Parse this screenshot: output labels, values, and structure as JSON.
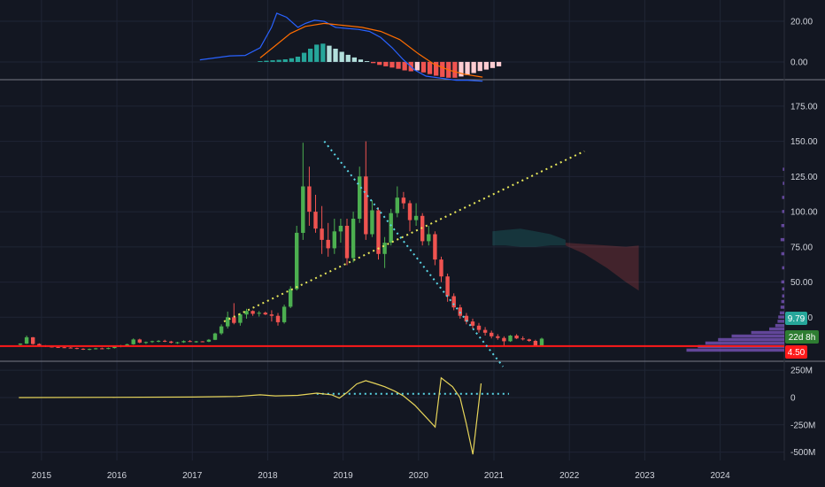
{
  "colors": {
    "background": "#131722",
    "grid": "#1f2535",
    "separator": "#787b86",
    "bull": "#26a69a",
    "bull_candle": "#4caf50",
    "bear_candle": "#ef5350",
    "support": "#ff1a1a",
    "rising_trend": "#e8e85a",
    "falling_trend": "#5ad6e6",
    "macd_line": "#2962ff",
    "signal_line": "#ff6d00",
    "hist_pos_strong": "#26a69a",
    "hist_pos_weak": "#b2dfdb",
    "hist_neg_strong": "#ef5350",
    "hist_neg_weak": "#ffcdd2",
    "obv_line": "#e6d45a",
    "obv_ref": "#5ad6e6",
    "volume_profile": "#7e57c2",
    "price_tag": "#26a69a",
    "countdown_tag": "#2e7d32",
    "support_tag": "#ff1a1a"
  },
  "chart_data": [
    {
      "type": "bar",
      "name": "macd",
      "yticks": [
        20.0,
        0.0
      ],
      "ytick_labels": [
        "20.00",
        "0.00"
      ],
      "ylim": [
        -7,
        27
      ],
      "start": 2014.72,
      "step": 0.0833,
      "macd_line": [
        {
          "x": 2017.1,
          "y": 1.0
        },
        {
          "x": 2017.3,
          "y": 2.0
        },
        {
          "x": 2017.5,
          "y": 3.0
        },
        {
          "x": 2017.7,
          "y": 3.2
        },
        {
          "x": 2017.9,
          "y": 7.0
        },
        {
          "x": 2018.05,
          "y": 17.0
        },
        {
          "x": 2018.12,
          "y": 24.0
        },
        {
          "x": 2018.25,
          "y": 22.0
        },
        {
          "x": 2018.4,
          "y": 17.0
        },
        {
          "x": 2018.5,
          "y": 19.0
        },
        {
          "x": 2018.62,
          "y": 20.5
        },
        {
          "x": 2018.75,
          "y": 20.0
        },
        {
          "x": 2018.9,
          "y": 17.0
        },
        {
          "x": 2019.05,
          "y": 16.5
        },
        {
          "x": 2019.2,
          "y": 16.0
        },
        {
          "x": 2019.35,
          "y": 15.0
        },
        {
          "x": 2019.5,
          "y": 12.0
        },
        {
          "x": 2019.65,
          "y": 7.0
        },
        {
          "x": 2019.8,
          "y": 1.0
        },
        {
          "x": 2019.95,
          "y": -4.0
        },
        {
          "x": 2020.1,
          "y": -7.0
        },
        {
          "x": 2020.3,
          "y": -8.0
        },
        {
          "x": 2020.5,
          "y": -9.0
        },
        {
          "x": 2020.65,
          "y": -9.0
        },
        {
          "x": 2020.85,
          "y": -9.5
        }
      ],
      "signal_line": [
        {
          "x": 2017.9,
          "y": 2.0
        },
        {
          "x": 2018.1,
          "y": 8.0
        },
        {
          "x": 2018.3,
          "y": 14.0
        },
        {
          "x": 2018.5,
          "y": 17.5
        },
        {
          "x": 2018.75,
          "y": 19.0
        },
        {
          "x": 2019.0,
          "y": 18.0
        },
        {
          "x": 2019.25,
          "y": 17.0
        },
        {
          "x": 2019.5,
          "y": 15.0
        },
        {
          "x": 2019.75,
          "y": 11.0
        },
        {
          "x": 2020.0,
          "y": 4.0
        },
        {
          "x": 2020.2,
          "y": -1.0
        },
        {
          "x": 2020.4,
          "y": -4.0
        },
        {
          "x": 2020.6,
          "y": -6.0
        },
        {
          "x": 2020.85,
          "y": -7.5
        }
      ],
      "histogram": [
        0.4,
        0.6,
        0.8,
        1.0,
        1.3,
        1.8,
        2.6,
        4.5,
        6.5,
        8.5,
        9.0,
        8.0,
        6.5,
        5.0,
        3.5,
        2.2,
        1.2,
        0.4,
        -0.6,
        -1.5,
        -2.2,
        -2.8,
        -3.4,
        -4.2,
        -4.6,
        -4.2,
        -5.2,
        -6.0,
        -6.8,
        -7.4,
        -7.8,
        -7.8,
        -7.2,
        -6.5,
        -5.5,
        -4.5,
        -3.8,
        -3.0,
        -2.2
      ],
      "histogram_start": 2017.9
    },
    {
      "type": "candlestick",
      "name": "price",
      "yticks": [
        25,
        50,
        75,
        100,
        125,
        150,
        175
      ],
      "ytick_labels": [
        "25.00",
        "50.00",
        "75.00",
        "100.00",
        "125.00",
        "150.00",
        "175.00"
      ],
      "ylim": [
        -5,
        190
      ],
      "x_ticks": [
        2015,
        2016,
        2017,
        2018,
        2019,
        2020,
        2021,
        2022,
        2023,
        2024
      ],
      "x_tick_labels": [
        "2015",
        "2016",
        "2017",
        "2018",
        "2019",
        "2020",
        "2021",
        "2022",
        "2023",
        "2024"
      ],
      "x_range": [
        2014.45,
        2024.85
      ],
      "candle_start": 2014.72,
      "candle_step": 0.0833,
      "candles": [
        [
          5.5,
          6.5,
          4.8,
          6.3
        ],
        [
          6.3,
          12.0,
          6.0,
          10.8
        ],
        [
          10.8,
          11.0,
          5.5,
          6.0
        ],
        [
          6.0,
          6.5,
          4.0,
          4.8
        ],
        [
          4.8,
          5.2,
          3.8,
          4.2
        ],
        [
          4.2,
          4.6,
          3.5,
          3.9
        ],
        [
          3.9,
          4.3,
          3.2,
          3.7
        ],
        [
          3.7,
          4.1,
          3.1,
          3.4
        ],
        [
          3.4,
          3.8,
          2.9,
          3.1
        ],
        [
          3.1,
          3.4,
          2.3,
          2.6
        ],
        [
          2.6,
          3.0,
          1.8,
          2.2
        ],
        [
          2.2,
          2.8,
          1.6,
          2.5
        ],
        [
          2.5,
          3.3,
          2.1,
          2.9
        ],
        [
          2.9,
          3.4,
          2.3,
          2.7
        ],
        [
          2.7,
          3.5,
          2.3,
          3.1
        ],
        [
          3.1,
          4.5,
          2.8,
          4.2
        ],
        [
          4.2,
          5.4,
          3.6,
          4.9
        ],
        [
          4.9,
          6.2,
          4.5,
          5.8
        ],
        [
          5.8,
          10.0,
          5.5,
          9.2
        ],
        [
          9.2,
          9.8,
          6.5,
          7.0
        ],
        [
          7.0,
          7.8,
          6.0,
          7.4
        ],
        [
          7.4,
          8.4,
          6.8,
          8.0
        ],
        [
          8.0,
          8.8,
          7.2,
          8.3
        ],
        [
          8.3,
          9.0,
          7.3,
          7.8
        ],
        [
          7.8,
          8.3,
          6.4,
          6.9
        ],
        [
          6.9,
          7.6,
          6.1,
          7.2
        ],
        [
          7.2,
          8.6,
          6.8,
          8.1
        ],
        [
          8.1,
          8.8,
          7.4,
          7.6
        ],
        [
          7.6,
          8.2,
          6.9,
          7.9
        ],
        [
          7.9,
          8.1,
          7.2,
          7.6
        ],
        [
          7.6,
          9.5,
          7.3,
          9.0
        ],
        [
          9.0,
          14.0,
          8.8,
          13.5
        ],
        [
          13.5,
          20.0,
          12.5,
          18.5
        ],
        [
          18.5,
          29.0,
          17.0,
          25.0
        ],
        [
          25.0,
          35.0,
          20.0,
          21.0
        ],
        [
          21.0,
          28.0,
          19.0,
          27.0
        ],
        [
          27.0,
          31.0,
          24.0,
          29.5
        ],
        [
          29.5,
          30.0,
          26.0,
          27.5
        ],
        [
          27.5,
          29.5,
          25.5,
          28.2
        ],
        [
          28.2,
          29.0,
          26.5,
          27.0
        ],
        [
          27.0,
          30.0,
          22.0,
          26.0
        ],
        [
          26.0,
          28.0,
          19.0,
          21.5
        ],
        [
          21.5,
          34.0,
          20.5,
          32.5
        ],
        [
          32.5,
          47.0,
          31.5,
          45.0
        ],
        [
          45.0,
          90.0,
          44.0,
          85.0
        ],
        [
          85.0,
          149.0,
          80.0,
          118.0
        ],
        [
          118.0,
          132.0,
          90.0,
          100.0
        ],
        [
          100.0,
          112.0,
          85.0,
          88.0
        ],
        [
          88.0,
          104.0,
          70.0,
          80.0
        ],
        [
          80.0,
          92.0,
          68.0,
          74.0
        ],
        [
          74.0,
          95.0,
          70.0,
          86.0
        ],
        [
          86.0,
          95.0,
          78.0,
          90.0
        ],
        [
          90.0,
          95.0,
          62.0,
          67.0
        ],
        [
          67.0,
          100.0,
          64.0,
          95.0
        ],
        [
          95.0,
          132.0,
          92.0,
          125.0
        ],
        [
          125.0,
          150.0,
          80.0,
          84.0
        ],
        [
          84.0,
          108.0,
          82.0,
          101.0
        ],
        [
          101.0,
          103.0,
          66.0,
          70.0
        ],
        [
          70.0,
          82.0,
          60.0,
          78.0
        ],
        [
          78.0,
          102.0,
          76.0,
          99.0
        ],
        [
          99.0,
          118.0,
          96.0,
          110.0
        ],
        [
          110.0,
          114.0,
          102.0,
          106.0
        ],
        [
          106.0,
          108.0,
          86.0,
          94.0
        ],
        [
          94.0,
          106.0,
          90.0,
          97.0
        ],
        [
          97.0,
          99.0,
          76.0,
          79.0
        ],
        [
          79.0,
          90.0,
          76.0,
          84.0
        ],
        [
          84.0,
          86.0,
          62.0,
          66.0
        ],
        [
          66.0,
          68.0,
          50.0,
          54.0
        ],
        [
          54.0,
          56.0,
          36.0,
          40.0
        ],
        [
          40.0,
          42.0,
          30.0,
          32.0
        ],
        [
          32.0,
          34.0,
          24.0,
          26.0
        ],
        [
          26.0,
          28.0,
          20.0,
          22.0
        ],
        [
          22.0,
          24.0,
          17.0,
          19.0
        ],
        [
          19.0,
          21.0,
          14.0,
          16.0
        ],
        [
          16.0,
          18.0,
          12.0,
          14.0
        ],
        [
          14.0,
          15.5,
          10.0,
          11.5
        ],
        [
          11.5,
          13.0,
          9.0,
          10.3
        ],
        [
          10.3,
          11.5,
          5.0,
          8.0
        ],
        [
          8.0,
          12.5,
          7.5,
          12.0
        ],
        [
          12.0,
          13.0,
          9.5,
          10.0
        ],
        [
          10.0,
          11.5,
          8.5,
          9.3
        ],
        [
          9.3,
          9.8,
          7.5,
          8.2
        ],
        [
          8.2,
          9.0,
          4.2,
          4.7
        ],
        [
          4.7,
          10.5,
          4.5,
          9.79
        ]
      ],
      "support_level": 4.5,
      "rising_trend_line": [
        {
          "x": 2017.42,
          "y": 22
        },
        {
          "x": 2022.2,
          "y": 143
        }
      ],
      "falling_trend_line": [
        {
          "x": 2018.75,
          "y": 150
        },
        {
          "x": 2021.12,
          "y": -10
        }
      ],
      "cloud_green": {
        "x": [
          2020.98,
          2021.15,
          2021.35,
          2021.55,
          2021.75,
          2021.95
        ],
        "top": [
          86,
          87,
          88,
          86,
          84,
          80
        ],
        "bottom": [
          76,
          76,
          75,
          75,
          76,
          76
        ]
      },
      "cloud_red": {
        "x": [
          2021.95,
          2022.2,
          2022.5,
          2022.75,
          2022.92
        ],
        "top": [
          78,
          77,
          76,
          75,
          76
        ],
        "bottom": [
          76,
          70,
          60,
          50,
          44
        ]
      },
      "volume_profile": [
        {
          "price": 1.5,
          "width": 130
        },
        {
          "price": 4.0,
          "width": 115
        },
        {
          "price": 6.5,
          "width": 105
        },
        {
          "price": 9.0,
          "width": 88
        },
        {
          "price": 11.5,
          "width": 70
        },
        {
          "price": 14.0,
          "width": 44
        },
        {
          "price": 16.5,
          "width": 20
        },
        {
          "price": 19.0,
          "width": 12
        },
        {
          "price": 22.0,
          "width": 9
        },
        {
          "price": 25.0,
          "width": 8
        },
        {
          "price": 28.0,
          "width": 6
        },
        {
          "price": 32.0,
          "width": 5
        },
        {
          "price": 36.0,
          "width": 4
        },
        {
          "price": 40.0,
          "width": 3
        },
        {
          "price": 45.0,
          "width": 3
        },
        {
          "price": 50.0,
          "width": 4
        },
        {
          "price": 60.0,
          "width": 3
        },
        {
          "price": 70.0,
          "width": 4
        },
        {
          "price": 80.0,
          "width": 5
        },
        {
          "price": 90.0,
          "width": 4
        },
        {
          "price": 100.0,
          "width": 3
        },
        {
          "price": 110.0,
          "width": 3
        },
        {
          "price": 120.0,
          "width": 2
        },
        {
          "price": 130.0,
          "width": 2
        }
      ],
      "last_price_label": "9.79",
      "countdown_label": "22d 8h",
      "support_label": "4.50"
    },
    {
      "type": "line",
      "name": "volume_oscillator",
      "yticks": [
        250000000,
        0,
        -250000000,
        -500000000
      ],
      "ytick_labels": [
        "250M",
        "0",
        "-250M",
        "-500M"
      ],
      "ylim": [
        -560000000,
        300000000
      ],
      "series": [
        {
          "type": "line",
          "points": [
            {
              "x": 2014.7,
              "y": 0
            },
            {
              "x": 2016.0,
              "y": 2000000
            },
            {
              "x": 2017.0,
              "y": 5000000
            },
            {
              "x": 2017.6,
              "y": 10000000
            },
            {
              "x": 2017.9,
              "y": 25000000
            },
            {
              "x": 2018.1,
              "y": 15000000
            },
            {
              "x": 2018.4,
              "y": 20000000
            },
            {
              "x": 2018.65,
              "y": 40000000
            },
            {
              "x": 2018.85,
              "y": 25000000
            },
            {
              "x": 2018.95,
              "y": -5000000
            },
            {
              "x": 2019.05,
              "y": 45000000
            },
            {
              "x": 2019.18,
              "y": 125000000
            },
            {
              "x": 2019.3,
              "y": 155000000
            },
            {
              "x": 2019.42,
              "y": 130000000
            },
            {
              "x": 2019.55,
              "y": 100000000
            },
            {
              "x": 2019.68,
              "y": 60000000
            },
            {
              "x": 2019.8,
              "y": 15000000
            },
            {
              "x": 2019.95,
              "y": -70000000
            },
            {
              "x": 2020.1,
              "y": -180000000
            },
            {
              "x": 2020.22,
              "y": -270000000
            },
            {
              "x": 2020.3,
              "y": 180000000
            },
            {
              "x": 2020.45,
              "y": 100000000
            },
            {
              "x": 2020.55,
              "y": 0
            },
            {
              "x": 2020.63,
              "y": -230000000
            },
            {
              "x": 2020.72,
              "y": -520000000
            },
            {
              "x": 2020.83,
              "y": 130000000
            }
          ]
        },
        {
          "type": "line",
          "dotted": true,
          "points": [
            {
              "x": 2018.65,
              "y": 35000000
            },
            {
              "x": 2021.2,
              "y": 35000000
            }
          ]
        }
      ]
    }
  ]
}
